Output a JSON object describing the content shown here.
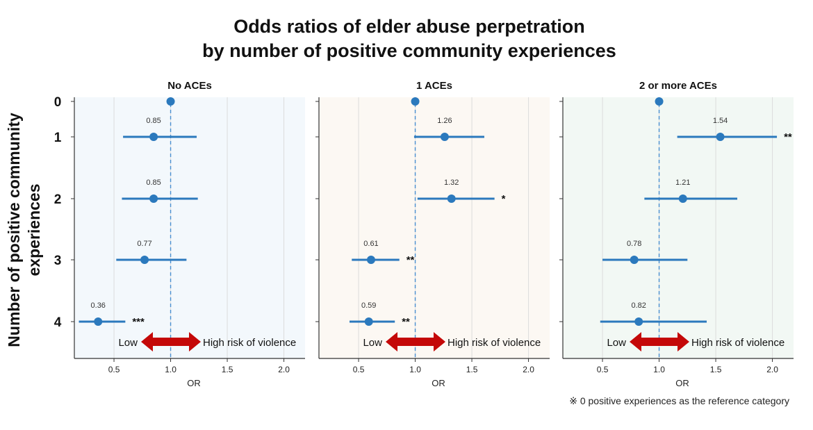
{
  "title_line1": "Odds ratios of elder abuse perpetration",
  "title_line2": "by number of positive community experiences",
  "ylabel_line1": "Number of positive community",
  "ylabel_line2": "experiences",
  "footnote": "※ 0 positive experiences as the reference category",
  "arrow_low_label": "Low",
  "arrow_high_label": "High risk of violence",
  "colors": {
    "point": "#2b79bd",
    "reference_line": "#4a8fd0",
    "arrow": "#c40808",
    "panel_backgrounds": [
      "#f3f8fc",
      "#fcf8f3",
      "#f2f8f4"
    ]
  },
  "chart_data": [
    {
      "type": "forest",
      "title": "No ACEs",
      "xlabel": "OR",
      "xlim": [
        0.0,
        2.2
      ],
      "xticks": [
        0.5,
        1.0,
        1.5,
        2.0
      ],
      "xtick_labels": [
        "0.5",
        "1.0",
        "1.5",
        "2.0"
      ],
      "categories": [
        "0",
        "1",
        "2",
        "3",
        "4"
      ],
      "points": [
        {
          "category": "0",
          "or": 1.0,
          "ci": null,
          "label": "",
          "sig": ""
        },
        {
          "category": "1",
          "or": 0.85,
          "ci": [
            0.58,
            1.23
          ],
          "label": "0.85",
          "sig": ""
        },
        {
          "category": "2",
          "or": 0.85,
          "ci": [
            0.57,
            1.24
          ],
          "label": "0.85",
          "sig": ""
        },
        {
          "category": "3",
          "or": 0.77,
          "ci": [
            0.52,
            1.14
          ],
          "label": "0.77",
          "sig": ""
        },
        {
          "category": "4",
          "or": 0.36,
          "ci": [
            0.19,
            0.6
          ],
          "label": "0.36",
          "sig": "***"
        }
      ],
      "reference": 1.0,
      "grid": true
    },
    {
      "type": "forest",
      "title": "1 ACEs",
      "xlabel": "OR",
      "xlim": [
        0.0,
        2.2
      ],
      "xticks": [
        0.5,
        1.0,
        1.5,
        2.0
      ],
      "xtick_labels": [
        "0.5",
        "1.0",
        "1.5",
        "2.0"
      ],
      "categories": [
        "0",
        "1",
        "2",
        "3",
        "4"
      ],
      "points": [
        {
          "category": "0",
          "or": 1.0,
          "ci": null,
          "label": "",
          "sig": ""
        },
        {
          "category": "1",
          "or": 1.26,
          "ci": [
            0.99,
            1.61
          ],
          "label": "1.26",
          "sig": ""
        },
        {
          "category": "2",
          "or": 1.32,
          "ci": [
            1.02,
            1.7
          ],
          "label": "1.32",
          "sig": "*"
        },
        {
          "category": "3",
          "or": 0.61,
          "ci": [
            0.44,
            0.86
          ],
          "label": "0.61",
          "sig": "**"
        },
        {
          "category": "4",
          "or": 0.59,
          "ci": [
            0.42,
            0.82
          ],
          "label": "0.59",
          "sig": "**"
        }
      ],
      "reference": 1.0,
      "grid": true
    },
    {
      "type": "forest",
      "title": "2 or more ACEs",
      "xlabel": "OR",
      "xlim": [
        0.0,
        2.2
      ],
      "xticks": [
        0.5,
        1.0,
        1.5,
        2.0
      ],
      "xtick_labels": [
        "0.5",
        "1.0",
        "1.5",
        "2.0"
      ],
      "categories": [
        "0",
        "1",
        "2",
        "3",
        "4"
      ],
      "points": [
        {
          "category": "0",
          "or": 1.0,
          "ci": null,
          "label": "",
          "sig": ""
        },
        {
          "category": "1",
          "or": 1.54,
          "ci": [
            1.16,
            2.04
          ],
          "label": "1.54",
          "sig": "**"
        },
        {
          "category": "2",
          "or": 1.21,
          "ci": [
            0.87,
            1.69
          ],
          "label": "1.21",
          "sig": ""
        },
        {
          "category": "3",
          "or": 0.78,
          "ci": [
            0.5,
            1.25
          ],
          "label": "0.78",
          "sig": ""
        },
        {
          "category": "4",
          "or": 0.82,
          "ci": [
            0.48,
            1.42
          ],
          "label": "0.82",
          "sig": ""
        }
      ],
      "reference": 1.0,
      "grid": true
    }
  ]
}
